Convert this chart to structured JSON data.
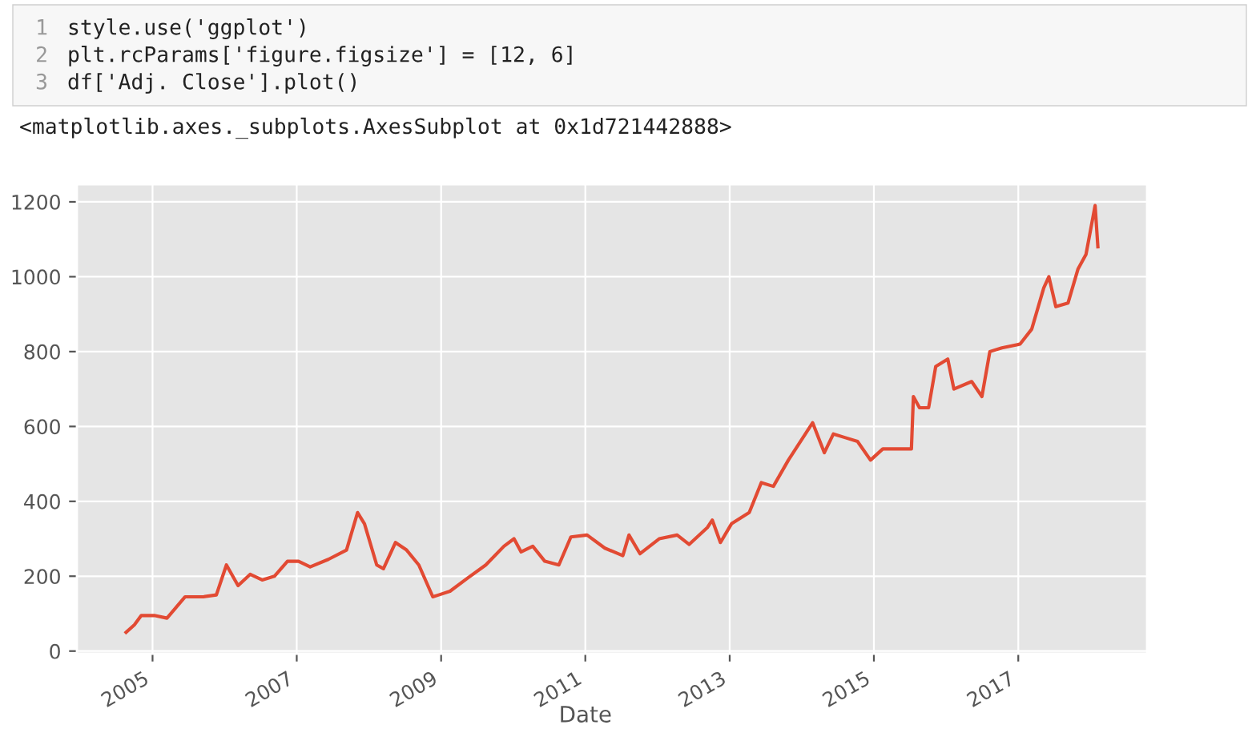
{
  "chart_data": {
    "type": "line",
    "xlabel": "Date",
    "annotations": [
      "1",
      "2",
      "3",
      "style.use('ggplot')",
      "plt.rcParams['figure.figsize'] = [12, 6]",
      "df['Adj. Close'].plot()",
      "<matplotlib.axes._subplots.AxesSubplot at 0x1d721442888>"
    ],
    "x": [
      "2004-08-20",
      "2004-10-01",
      "2004-11-05",
      "2005-01-10",
      "2005-03-15",
      "2005-06-15",
      "2005-09-15",
      "2005-11-20",
      "2006-01-10",
      "2006-03-10",
      "2006-05-10",
      "2006-07-10",
      "2006-09-10",
      "2006-11-15",
      "2007-01-10",
      "2007-03-10",
      "2007-06-10",
      "2007-09-10",
      "2007-11-05",
      "2007-12-10",
      "2008-02-10",
      "2008-03-15",
      "2008-05-15",
      "2008-07-10",
      "2008-09-10",
      "2008-11-20",
      "2008-12-20",
      "2009-02-15",
      "2009-05-15",
      "2009-08-15",
      "2009-11-15",
      "2010-01-05",
      "2010-02-10",
      "2010-04-10",
      "2010-06-10",
      "2010-08-20",
      "2010-10-20",
      "2011-01-10",
      "2011-04-10",
      "2011-07-10",
      "2011-08-10",
      "2011-10-05",
      "2012-01-10",
      "2012-04-10",
      "2012-06-10",
      "2012-09-10",
      "2012-10-05",
      "2012-11-15",
      "2013-01-10",
      "2013-04-10",
      "2013-06-10",
      "2013-08-10",
      "2013-10-25",
      "2014-02-25",
      "2014-04-25",
      "2014-06-10",
      "2014-08-10",
      "2014-10-10",
      "2014-12-15",
      "2015-02-15",
      "2015-04-15",
      "2015-07-10",
      "2015-07-20",
      "2015-08-20",
      "2015-10-05",
      "2015-11-10",
      "2016-01-10",
      "2016-02-10",
      "2016-05-10",
      "2016-07-01",
      "2016-08-10",
      "2016-10-10",
      "2017-01-10",
      "2017-03-10",
      "2017-05-10",
      "2017-06-05",
      "2017-07-10",
      "2017-09-10",
      "2017-10-30",
      "2017-12-10",
      "2018-01-25",
      "2018-02-08"
    ],
    "series": [
      {
        "color": "#e24a33",
        "values": [
          50,
          70,
          95,
          95,
          88,
          145,
          145,
          150,
          230,
          175,
          205,
          190,
          200,
          240,
          240,
          225,
          245,
          270,
          370,
          340,
          230,
          220,
          290,
          270,
          230,
          145,
          150,
          160,
          195,
          230,
          280,
          300,
          265,
          280,
          240,
          230,
          305,
          310,
          275,
          255,
          310,
          260,
          300,
          310,
          285,
          330,
          350,
          290,
          340,
          370,
          450,
          440,
          510,
          610,
          530,
          580,
          570,
          560,
          510,
          540,
          540,
          540,
          680,
          650,
          650,
          760,
          780,
          700,
          720,
          680,
          800,
          810,
          820,
          860,
          970,
          1000,
          920,
          930,
          1020,
          1060,
          1190,
          1080
        ]
      }
    ],
    "xlim": [
      "2003-12-15",
      "2018-10-15"
    ],
    "xticks": [
      {
        "value": "2005",
        "label": "2005"
      },
      {
        "value": "2007",
        "label": "2007"
      },
      {
        "value": "2009",
        "label": "2009"
      },
      {
        "value": "2011",
        "label": "2011"
      },
      {
        "value": "2013",
        "label": "2013"
      },
      {
        "value": "2015",
        "label": "2015"
      },
      {
        "value": "2017",
        "label": "2017"
      }
    ],
    "ylim": [
      -7,
      1247
    ],
    "yticks": [
      0,
      200,
      400,
      600,
      800,
      1000,
      1200
    ],
    "grid": true,
    "marker": "none",
    "line_style": "solid"
  }
}
